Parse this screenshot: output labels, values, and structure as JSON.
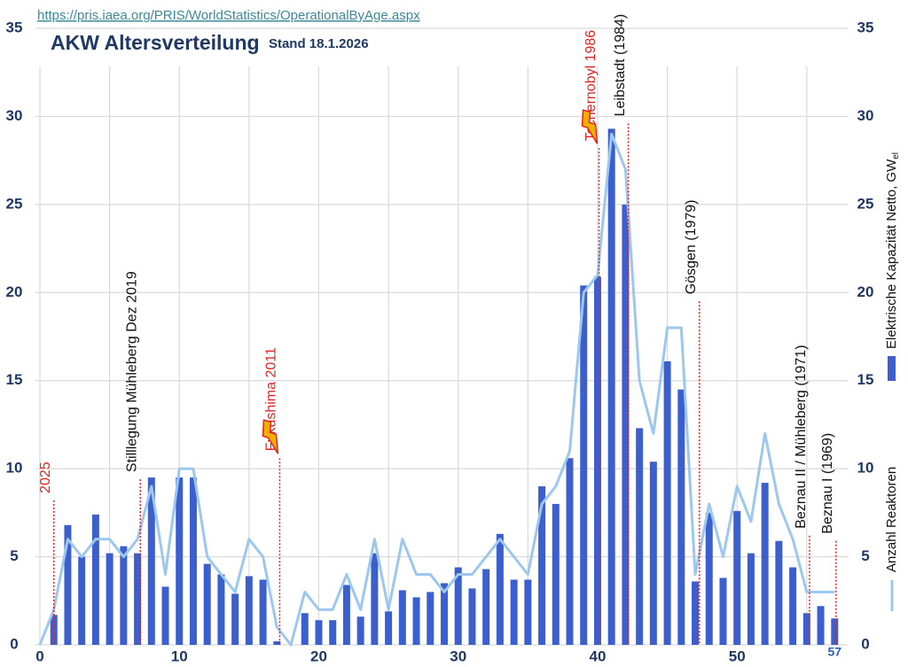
{
  "chart_data": {
    "type": "bar-line",
    "source_url": "https://pris.iaea.org/PRIS/WorldStatistics/OperationalByAge.aspx",
    "title": "AKW Altersverteilung",
    "subtitle": "Stand 18.1.2026",
    "xlim": [
      0,
      58
    ],
    "xticks": [
      0,
      10,
      20,
      30,
      40,
      50,
      57
    ],
    "last_xtick_color": "#2e5fbf",
    "xgrid": [
      0,
      5,
      10,
      15,
      20,
      25,
      30,
      35,
      40,
      45,
      50,
      55
    ],
    "ylim": [
      0,
      35
    ],
    "yticks": [
      0,
      5,
      10,
      15,
      20,
      25,
      30,
      35
    ],
    "y2lim": [
      0,
      35
    ],
    "y2ticks": [
      0,
      5,
      10,
      15,
      20,
      25,
      30,
      35
    ],
    "grid": true,
    "series": [
      {
        "name": "Elektrische Kapazität Netto, GW",
        "name_subscript": "el",
        "type": "bar",
        "color": "#3b5fcf",
        "x": [
          1,
          2,
          3,
          4,
          5,
          6,
          7,
          8,
          9,
          10,
          11,
          12,
          13,
          14,
          15,
          16,
          17,
          18,
          19,
          20,
          21,
          22,
          23,
          24,
          25,
          26,
          27,
          28,
          29,
          30,
          31,
          32,
          33,
          34,
          35,
          36,
          37,
          38,
          39,
          40,
          41,
          42,
          43,
          44,
          45,
          46,
          47,
          48,
          49,
          50,
          51,
          52,
          53,
          54,
          55,
          56,
          57
        ],
        "values": [
          1.7,
          6.8,
          5.0,
          7.4,
          5.2,
          5.6,
          5.2,
          9.5,
          3.3,
          9.5,
          9.5,
          4.6,
          4.0,
          2.9,
          3.9,
          3.7,
          0.2,
          0,
          1.8,
          1.4,
          1.4,
          3.4,
          1.6,
          5.2,
          1.9,
          3.1,
          2.7,
          3.0,
          3.5,
          4.4,
          3.2,
          4.3,
          6.3,
          3.7,
          3.7,
          9.0,
          8.0,
          10.6,
          20.4,
          20.9,
          29.3,
          25.0,
          12.3,
          10.4,
          16.1,
          14.5,
          3.6,
          7.5,
          3.8,
          7.6,
          5.2,
          9.2,
          5.9,
          4.4,
          1.8,
          2.2,
          1.5
        ]
      },
      {
        "name": "Anzahl Reaktoren",
        "type": "line",
        "axis": "y2",
        "color": "#9cc8f0",
        "x": [
          0,
          1,
          2,
          3,
          4,
          5,
          6,
          7,
          8,
          9,
          10,
          11,
          12,
          13,
          14,
          15,
          16,
          17,
          18,
          19,
          20,
          21,
          22,
          23,
          24,
          25,
          26,
          27,
          28,
          29,
          30,
          31,
          32,
          33,
          34,
          35,
          36,
          37,
          38,
          39,
          40,
          41,
          42,
          43,
          44,
          45,
          46,
          47,
          48,
          49,
          50,
          51,
          52,
          53,
          54,
          55,
          56,
          57
        ],
        "values": [
          0,
          2,
          6,
          5,
          6,
          6,
          5,
          6,
          9,
          4,
          10,
          10,
          5,
          4,
          3,
          6,
          5,
          1,
          0,
          3,
          2,
          2,
          4,
          2,
          6,
          2,
          6,
          4,
          4,
          3,
          4,
          4,
          5,
          6,
          5,
          4,
          8,
          9,
          11,
          20,
          21,
          29,
          27,
          15,
          12,
          18,
          18,
          4,
          8,
          5,
          9,
          7,
          12,
          8,
          6,
          3,
          3,
          3
        ]
      }
    ],
    "annotations": [
      {
        "text": "2025",
        "x": 1,
        "y": 8.2,
        "color": "#e32222"
      },
      {
        "text": "Stilllegung Mühleberg  Dez 2019",
        "x": 7.2,
        "y": 9.4,
        "color": "#111111"
      },
      {
        "text": "Fukushima 2011",
        "x": 17.2,
        "y": 10.6,
        "color": "#e32222",
        "icon": "lightning"
      },
      {
        "text": "Tschernobyl 1986",
        "x": 40.1,
        "y": 28.2,
        "color": "#e32222",
        "icon": "lightning"
      },
      {
        "text": "Leibstadt (1984)",
        "x": 42.2,
        "y": 29.6,
        "color": "#111111"
      },
      {
        "text": "Gösgen (1979)",
        "x": 47.3,
        "y": 19.5,
        "color": "#111111"
      },
      {
        "text": "Beznau II / Mühleberg (1971)",
        "x": 55.2,
        "y": 6.2,
        "color": "#111111"
      },
      {
        "text": "Beznau I (1969)",
        "x": 57.1,
        "y": 5.9,
        "color": "#111111"
      }
    ]
  }
}
